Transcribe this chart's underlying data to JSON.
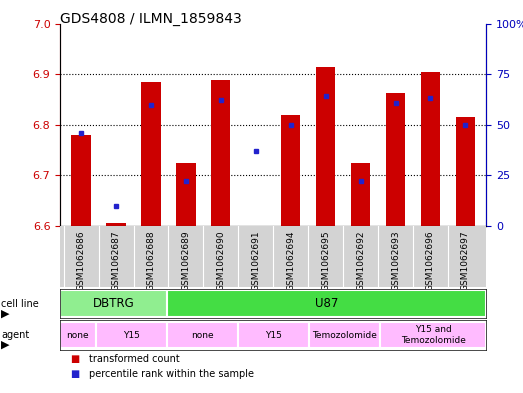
{
  "title": "GDS4808 / ILMN_1859843",
  "samples": [
    "GSM1062686",
    "GSM1062687",
    "GSM1062688",
    "GSM1062689",
    "GSM1062690",
    "GSM1062691",
    "GSM1062694",
    "GSM1062695",
    "GSM1062692",
    "GSM1062693",
    "GSM1062696",
    "GSM1062697"
  ],
  "red_values": [
    6.78,
    6.605,
    6.885,
    6.725,
    6.888,
    6.6,
    6.82,
    6.915,
    6.725,
    6.862,
    6.905,
    6.815
  ],
  "blue_values": [
    46,
    10,
    60,
    22,
    62,
    37,
    50,
    64,
    22,
    61,
    63,
    50
  ],
  "ymin": 6.6,
  "ymax": 7.0,
  "y2min": 0,
  "y2max": 100,
  "yticks": [
    6.6,
    6.7,
    6.8,
    6.9,
    7.0
  ],
  "y2ticks": [
    0,
    25,
    50,
    75,
    100
  ],
  "cell_line_groups": [
    {
      "label": "DBTRG",
      "start": 0,
      "end": 3,
      "color": "#90ee90"
    },
    {
      "label": "U87",
      "start": 3,
      "end": 12,
      "color": "#44dd44"
    }
  ],
  "agent_groups": [
    {
      "label": "none",
      "start": 0,
      "end": 1,
      "color": "#ffbbff"
    },
    {
      "label": "Y15",
      "start": 1,
      "end": 3,
      "color": "#ffbbff"
    },
    {
      "label": "none",
      "start": 3,
      "end": 5,
      "color": "#ffbbff"
    },
    {
      "label": "Y15",
      "start": 5,
      "end": 7,
      "color": "#ffbbff"
    },
    {
      "label": "Temozolomide",
      "start": 7,
      "end": 9,
      "color": "#ffbbff"
    },
    {
      "label": "Y15 and\nTemozolomide",
      "start": 9,
      "end": 12,
      "color": "#ffbbff"
    }
  ],
  "bar_color": "#cc0000",
  "blue_color": "#2222cc",
  "base_value": 6.6,
  "left_tick_color": "#cc0000",
  "right_tick_color": "#0000bb",
  "gray_bg": "#d3d3d3"
}
